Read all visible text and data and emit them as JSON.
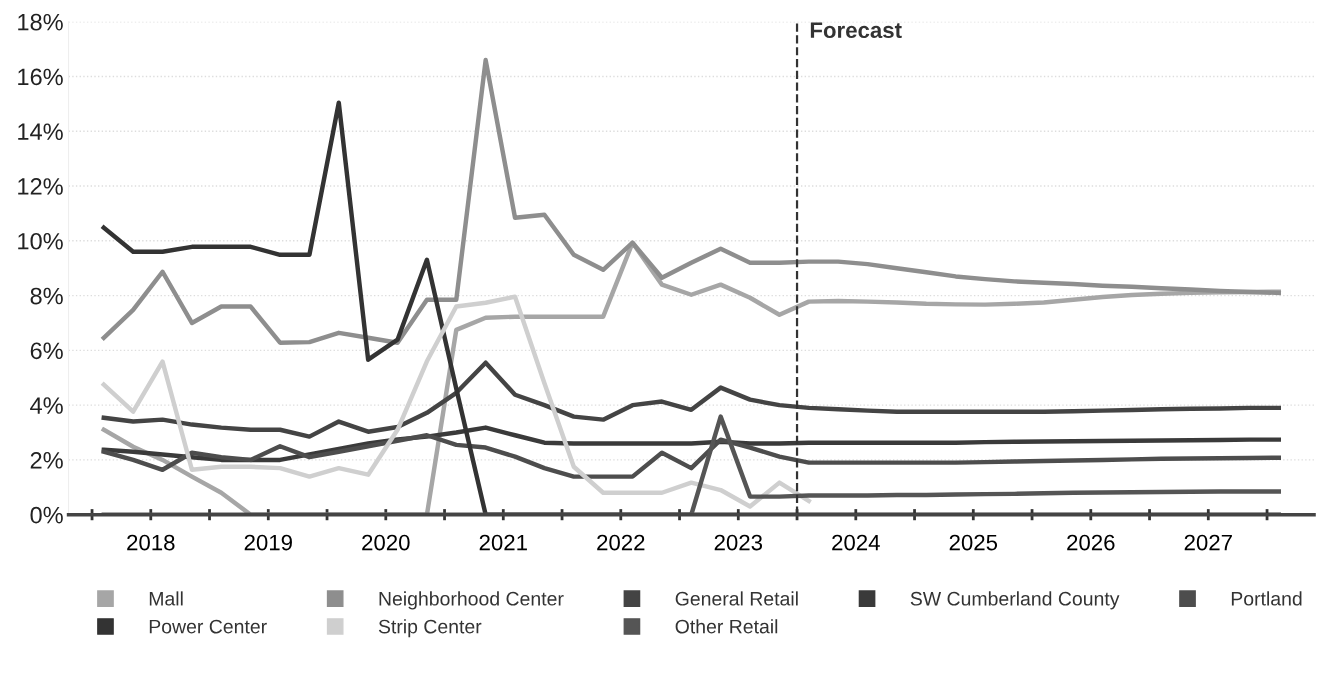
{
  "chart_data": {
    "type": "line",
    "x": [
      2018.1,
      2018.35,
      2018.6,
      2018.85,
      2019.1,
      2019.35,
      2019.6,
      2019.85,
      2020.1,
      2020.35,
      2020.6,
      2020.85,
      2021.1,
      2021.35,
      2021.6,
      2021.85,
      2022.1,
      2022.35,
      2022.6,
      2022.85,
      2023.1,
      2023.35,
      2023.6,
      2023.85,
      2024.1,
      2024.35,
      2024.6,
      2024.85,
      2025.1,
      2025.35,
      2025.6,
      2025.85,
      2026.1,
      2026.35,
      2026.6,
      2026.85,
      2027.1,
      2027.35,
      2027.6,
      2027.85,
      2028.1
    ],
    "series": [
      {
        "name": "Mall",
        "color": "#a6a6a6",
        "values": [
          3.1,
          2.48,
          2.0,
          1.39,
          0.8,
          0,
          0,
          0,
          0,
          0,
          0,
          0,
          6.75,
          7.19,
          7.23,
          7.23,
          7.23,
          7.23,
          9.93,
          8.4,
          8.03,
          8.4,
          7.92,
          7.3,
          7.78,
          7.8,
          7.78,
          7.75,
          7.7,
          7.68,
          7.67,
          7.7,
          7.75,
          7.85,
          7.95,
          8.02,
          8.07,
          8.1,
          8.12,
          8.13,
          8.14
        ]
      },
      {
        "name": "Neighborhood Center",
        "color": "#8e8e8e",
        "values": [
          6.46,
          7.48,
          8.87,
          7.0,
          7.6,
          7.6,
          6.28,
          6.3,
          6.64,
          6.46,
          6.28,
          7.85,
          7.85,
          16.6,
          10.84,
          10.95,
          9.49,
          8.94,
          9.93,
          8.65,
          9.2,
          9.71,
          9.2,
          9.2,
          9.24,
          9.24,
          9.15,
          9.0,
          8.85,
          8.7,
          8.6,
          8.52,
          8.47,
          8.42,
          8.36,
          8.32,
          8.27,
          8.22,
          8.17,
          8.13,
          8.1
        ]
      },
      {
        "name": "General Retail",
        "color": "#444444",
        "values": [
          3.54,
          3.4,
          3.47,
          3.29,
          3.18,
          3.1,
          3.1,
          2.85,
          3.4,
          3.03,
          3.2,
          3.72,
          4.45,
          5.55,
          4.38,
          4.0,
          3.58,
          3.47,
          4.0,
          4.13,
          3.83,
          4.64,
          4.2,
          4.0,
          3.9,
          3.85,
          3.8,
          3.76,
          3.76,
          3.76,
          3.76,
          3.76,
          3.76,
          3.78,
          3.8,
          3.82,
          3.85,
          3.87,
          3.88,
          3.9,
          3.9
        ]
      },
      {
        "name": "SW Cumberland County",
        "color": "#3a3a3a",
        "values": [
          2.37,
          2.3,
          2.2,
          2.1,
          2.0,
          2.0,
          2.0,
          2.2,
          2.4,
          2.6,
          2.75,
          2.85,
          3.0,
          3.18,
          2.9,
          2.63,
          2.6,
          2.6,
          2.6,
          2.6,
          2.6,
          2.66,
          2.6,
          2.6,
          2.63,
          2.63,
          2.63,
          2.63,
          2.63,
          2.63,
          2.65,
          2.66,
          2.67,
          2.68,
          2.69,
          2.7,
          2.71,
          2.72,
          2.73,
          2.74,
          2.74
        ]
      },
      {
        "name": "Portland",
        "color": "#4d4d4d",
        "values": [
          2.3,
          2.0,
          1.64,
          2.26,
          2.1,
          2.0,
          2.5,
          2.1,
          2.3,
          2.5,
          2.7,
          2.9,
          2.55,
          2.45,
          2.12,
          1.7,
          1.39,
          1.39,
          1.39,
          2.26,
          1.7,
          2.74,
          2.45,
          2.12,
          1.9,
          1.9,
          1.9,
          1.9,
          1.9,
          1.9,
          1.92,
          1.94,
          1.96,
          1.98,
          2.0,
          2.02,
          2.04,
          2.05,
          2.06,
          2.07,
          2.08
        ]
      },
      {
        "name": "Power Center",
        "color": "#333333",
        "values": [
          10.48,
          9.6,
          9.6,
          9.78,
          9.78,
          9.78,
          9.49,
          9.49,
          15.04,
          5.66,
          6.39,
          9.31,
          4.6,
          0,
          0,
          0,
          0,
          0,
          0,
          0,
          0,
          0,
          0,
          0,
          0,
          0,
          0,
          0,
          0,
          0,
          0,
          0,
          0,
          0,
          0,
          0,
          0,
          0,
          0,
          0,
          0
        ]
      },
      {
        "name": "Strip Center",
        "color": "#cfcfcf",
        "values": [
          4.75,
          3.76,
          5.59,
          1.64,
          1.75,
          1.75,
          1.7,
          1.39,
          1.7,
          1.46,
          3.1,
          5.6,
          7.6,
          7.74,
          7.96,
          4.8,
          1.75,
          0.8,
          0.8,
          0.8,
          1.17,
          0.9,
          0.3,
          1.17,
          0.5,
          null,
          null,
          null,
          null,
          null,
          null,
          null,
          null,
          null,
          null,
          null,
          null,
          null,
          null,
          null,
          null
        ]
      },
      {
        "name": "Other Retail",
        "color": "#555555",
        "values": [
          0,
          0,
          0,
          0,
          0,
          0,
          0,
          0,
          0,
          0,
          0,
          0,
          0,
          0,
          0,
          0,
          0,
          0,
          0,
          0,
          0,
          3.58,
          0.66,
          0.66,
          0.7,
          0.7,
          0.7,
          0.72,
          0.72,
          0.74,
          0.75,
          0.76,
          0.78,
          0.8,
          0.81,
          0.82,
          0.83,
          0.84,
          0.85,
          0.85,
          0.85
        ]
      }
    ],
    "xlim": [
      2017.8,
      2028.4
    ],
    "xticks": [
      {
        "value": 2018,
        "label": null
      },
      {
        "value": 2018.5,
        "label": "2018"
      },
      {
        "value": 2019,
        "label": null
      },
      {
        "value": 2019.5,
        "label": "2019"
      },
      {
        "value": 2020,
        "label": null
      },
      {
        "value": 2020.5,
        "label": "2020"
      },
      {
        "value": 2021,
        "label": null
      },
      {
        "value": 2021.5,
        "label": "2021"
      },
      {
        "value": 2022,
        "label": null
      },
      {
        "value": 2022.5,
        "label": "2022"
      },
      {
        "value": 2023,
        "label": null
      },
      {
        "value": 2023.5,
        "label": "2023"
      },
      {
        "value": 2024,
        "label": null
      },
      {
        "value": 2024.5,
        "label": "2024"
      },
      {
        "value": 2025,
        "label": null
      },
      {
        "value": 2025.5,
        "label": "2025"
      },
      {
        "value": 2026,
        "label": null
      },
      {
        "value": 2026.5,
        "label": "2026"
      },
      {
        "value": 2027,
        "label": null
      },
      {
        "value": 2027.5,
        "label": "2027"
      },
      {
        "value": 2028,
        "label": null
      }
    ],
    "ylim": [
      0,
      18
    ],
    "yticks": [
      {
        "value": 0,
        "label": "0%"
      },
      {
        "value": 2,
        "label": "2%"
      },
      {
        "value": 4,
        "label": "4%"
      },
      {
        "value": 6,
        "label": "6%"
      },
      {
        "value": 8,
        "label": "8%"
      },
      {
        "value": 10,
        "label": "10%"
      },
      {
        "value": 12,
        "label": "12%"
      },
      {
        "value": 14,
        "label": "14%"
      },
      {
        "value": 16,
        "label": "16%"
      },
      {
        "value": 18,
        "label": "18%"
      }
    ],
    "ref_lines": [
      {
        "axis": "x",
        "value": 2024,
        "label": "Forecast",
        "color": "#333333",
        "line_style": "dashed"
      }
    ],
    "grid": "y",
    "legend": "bottom",
    "marker": "none",
    "line_style": "solid"
  }
}
